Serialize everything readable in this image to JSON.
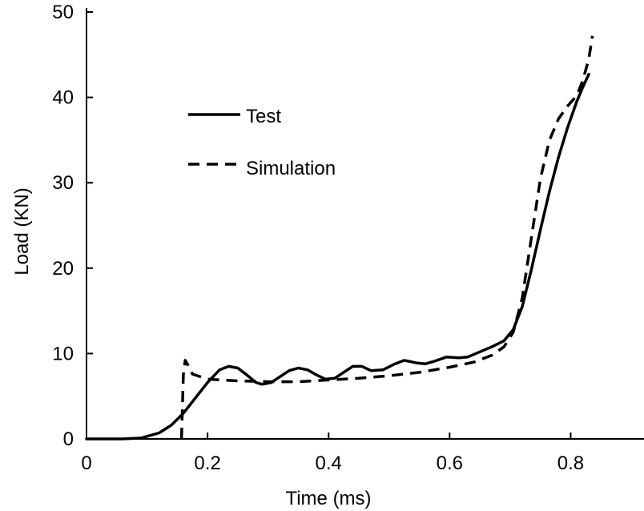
{
  "chart_data": {
    "type": "line",
    "title": "",
    "xlabel": "Time (ms)",
    "ylabel": "Load (KN)",
    "xlim": [
      0,
      0.9
    ],
    "ylim": [
      0,
      50
    ],
    "x_ticks": [
      0,
      0.2,
      0.4,
      0.6,
      0.8
    ],
    "x_tick_labels": [
      "0",
      "0.2",
      "0.4",
      "0.6",
      "0.8"
    ],
    "y_ticks": [
      0,
      10,
      20,
      30,
      40,
      50
    ],
    "y_tick_labels": [
      "0",
      "10",
      "20",
      "30",
      "40",
      "50"
    ],
    "grid": false,
    "legend_position": "upper-left",
    "series": [
      {
        "name": "Test",
        "style": "solid",
        "color": "#000000",
        "points": [
          [
            0.0,
            0.0
          ],
          [
            0.06,
            0.0
          ],
          [
            0.09,
            0.1
          ],
          [
            0.12,
            0.7
          ],
          [
            0.14,
            1.6
          ],
          [
            0.16,
            3.0
          ],
          [
            0.18,
            4.8
          ],
          [
            0.2,
            6.6
          ],
          [
            0.22,
            8.1
          ],
          [
            0.235,
            8.5
          ],
          [
            0.25,
            8.3
          ],
          [
            0.265,
            7.5
          ],
          [
            0.28,
            6.6
          ],
          [
            0.29,
            6.4
          ],
          [
            0.305,
            6.6
          ],
          [
            0.32,
            7.3
          ],
          [
            0.335,
            8.0
          ],
          [
            0.35,
            8.3
          ],
          [
            0.365,
            8.1
          ],
          [
            0.38,
            7.5
          ],
          [
            0.395,
            7.0
          ],
          [
            0.41,
            7.1
          ],
          [
            0.425,
            7.8
          ],
          [
            0.44,
            8.5
          ],
          [
            0.455,
            8.5
          ],
          [
            0.47,
            8.0
          ],
          [
            0.49,
            8.1
          ],
          [
            0.51,
            8.8
          ],
          [
            0.525,
            9.2
          ],
          [
            0.545,
            8.9
          ],
          [
            0.56,
            8.8
          ],
          [
            0.575,
            9.1
          ],
          [
            0.595,
            9.6
          ],
          [
            0.615,
            9.5
          ],
          [
            0.63,
            9.6
          ],
          [
            0.65,
            10.2
          ],
          [
            0.67,
            10.8
          ],
          [
            0.69,
            11.5
          ],
          [
            0.705,
            12.8
          ],
          [
            0.72,
            15.5
          ],
          [
            0.735,
            19.8
          ],
          [
            0.75,
            24.5
          ],
          [
            0.765,
            29.0
          ],
          [
            0.78,
            33.0
          ],
          [
            0.795,
            36.5
          ],
          [
            0.81,
            39.5
          ],
          [
            0.82,
            41.2
          ],
          [
            0.83,
            42.7
          ]
        ]
      },
      {
        "name": "Simulation",
        "style": "dashed",
        "color": "#000000",
        "points": [
          [
            0.157,
            0.0
          ],
          [
            0.16,
            7.5
          ],
          [
            0.163,
            9.2
          ],
          [
            0.168,
            8.6
          ],
          [
            0.175,
            7.6
          ],
          [
            0.2,
            7.0
          ],
          [
            0.25,
            6.8
          ],
          [
            0.3,
            6.7
          ],
          [
            0.35,
            6.7
          ],
          [
            0.4,
            6.9
          ],
          [
            0.45,
            7.1
          ],
          [
            0.5,
            7.4
          ],
          [
            0.55,
            7.8
          ],
          [
            0.6,
            8.4
          ],
          [
            0.64,
            9.0
          ],
          [
            0.67,
            9.8
          ],
          [
            0.69,
            10.8
          ],
          [
            0.705,
            12.5
          ],
          [
            0.72,
            16.5
          ],
          [
            0.735,
            23.5
          ],
          [
            0.75,
            30.5
          ],
          [
            0.765,
            35.0
          ],
          [
            0.78,
            37.5
          ],
          [
            0.795,
            39.0
          ],
          [
            0.81,
            40.2
          ],
          [
            0.82,
            42.0
          ],
          [
            0.83,
            44.5
          ],
          [
            0.836,
            47.2
          ]
        ]
      }
    ]
  }
}
